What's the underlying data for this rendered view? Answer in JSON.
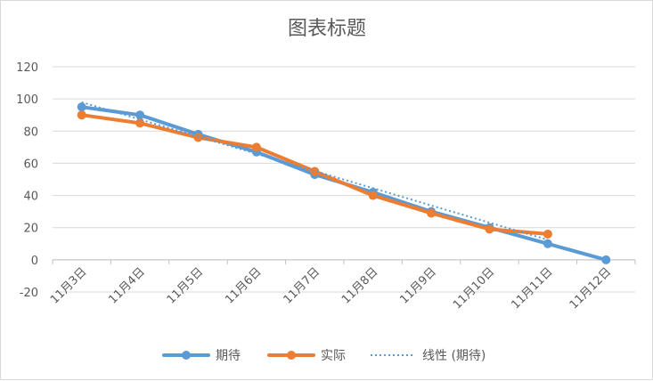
{
  "chart_data": {
    "type": "line",
    "title": "图表标题",
    "categories": [
      "11月3日",
      "11月4日",
      "11月5日",
      "11月6日",
      "11月7日",
      "11月8日",
      "11月9日",
      "11月10日",
      "11月11日",
      "11月12日"
    ],
    "ylim": [
      -20,
      120
    ],
    "yticks": [
      -20,
      0,
      20,
      40,
      60,
      80,
      100,
      120
    ],
    "grid": true,
    "legend_position": "bottom",
    "series": [
      {
        "name": "期待",
        "color": "#5B9BD5",
        "style": "solid",
        "markers": true,
        "values": [
          95,
          90,
          78,
          67,
          53,
          42,
          30,
          20,
          10,
          0
        ]
      },
      {
        "name": "实际",
        "color": "#ED7D31",
        "style": "solid",
        "markers": true,
        "values": [
          90,
          85,
          76,
          70,
          55,
          40,
          29,
          19,
          16,
          null
        ]
      },
      {
        "name": "线性 (期待)",
        "color": "#5B9BD5",
        "style": "dotted",
        "markers": false,
        "values": [
          98,
          87.3,
          76.6,
          65.9,
          55.2,
          44.5,
          33.8,
          23.1,
          12.4,
          null
        ]
      }
    ]
  }
}
